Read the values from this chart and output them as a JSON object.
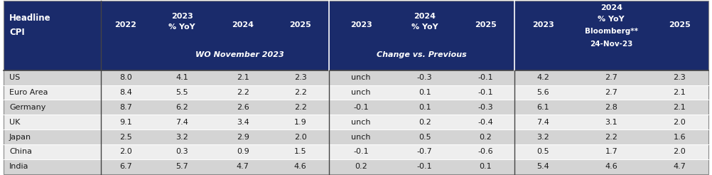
{
  "header_bg_color": "#1a2b6b",
  "header_text_color": "#ffffff",
  "row_bg_even": "#d4d4d4",
  "row_bg_odd": "#eeeeee",
  "body_text_color": "#1a1a1a",
  "subheader1": "WO November 2023",
  "subheader2": "Change vs. Previous",
  "countries": [
    "US",
    "Euro Area",
    "Germany",
    "UK",
    "Japan",
    "China",
    "India"
  ],
  "col2022": [
    "8.0",
    "8.4",
    "8.7",
    "9.1",
    "2.5",
    "2.0",
    "6.7"
  ],
  "col2023_wo": [
    "4.1",
    "5.5",
    "6.2",
    "7.4",
    "3.2",
    "0.3",
    "5.7"
  ],
  "col2024_wo": [
    "2.1",
    "2.2",
    "2.6",
    "3.4",
    "2.9",
    "0.9",
    "4.7"
  ],
  "col2025_wo": [
    "2.3",
    "2.2",
    "2.2",
    "1.9",
    "2.0",
    "1.5",
    "4.6"
  ],
  "col2023_chg": [
    "unch",
    "unch",
    "-0.1",
    "unch",
    "unch",
    "-0.1",
    "0.2"
  ],
  "col2024_chg": [
    "-0.3",
    "0.1",
    "0.1",
    "0.2",
    "0.5",
    "-0.7",
    "-0.1"
  ],
  "col2025_chg": [
    "-0.1",
    "-0.1",
    "-0.3",
    "-0.4",
    "0.2",
    "-0.6",
    "0.1"
  ],
  "col2023_bb": [
    "4.2",
    "5.6",
    "6.1",
    "7.4",
    "3.2",
    "0.5",
    "5.4"
  ],
  "col2024_bb": [
    "2.7",
    "2.7",
    "2.8",
    "3.1",
    "2.2",
    "1.7",
    "4.6"
  ],
  "col2025_bb": [
    "2.3",
    "2.1",
    "2.1",
    "2.0",
    "1.6",
    "2.0",
    "4.7"
  ],
  "figsize": [
    10.02,
    2.46
  ],
  "dpi": 100
}
